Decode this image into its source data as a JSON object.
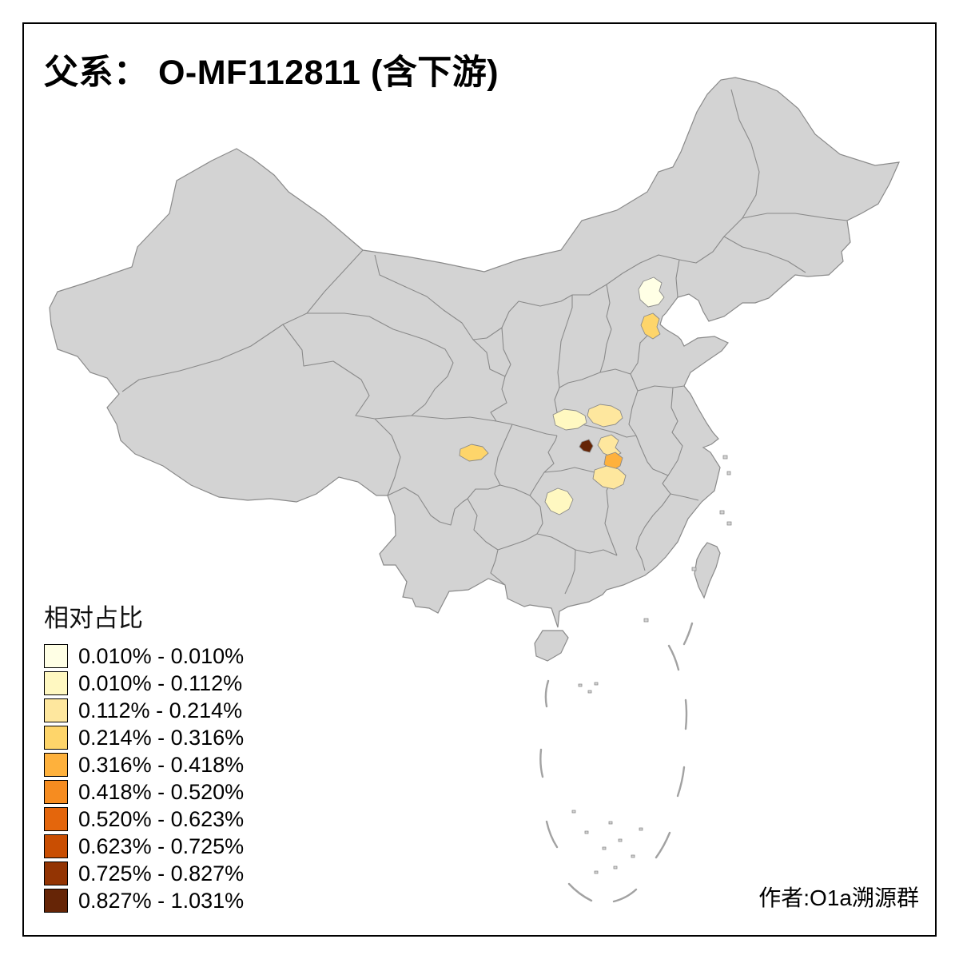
{
  "title": "父系： O-MF112811 (含下游)",
  "legend": {
    "title": "相对占比",
    "items": [
      {
        "label": "0.010% - 0.010%",
        "color": "#FFFFE5"
      },
      {
        "label": "0.010% - 0.112%",
        "color": "#FFF8C1"
      },
      {
        "label": "0.112% - 0.214%",
        "color": "#FEE79E"
      },
      {
        "label": "0.214% - 0.316%",
        "color": "#FED56A"
      },
      {
        "label": "0.316% - 0.418%",
        "color": "#FEB13C"
      },
      {
        "label": "0.418% - 0.520%",
        "color": "#F68C20"
      },
      {
        "label": "0.520% - 0.623%",
        "color": "#E4660C"
      },
      {
        "label": "0.623% - 0.725%",
        "color": "#C94E02"
      },
      {
        "label": "0.725% - 0.827%",
        "color": "#933403"
      },
      {
        "label": "0.827% - 1.031%",
        "color": "#662506"
      }
    ]
  },
  "attribution": "作者:O1a溯源群",
  "map": {
    "base_fill": "#D3D3D3",
    "border_color": "#8A8A8A",
    "highlights": [
      {
        "id": "region-1",
        "color": "#FFFFE5"
      },
      {
        "id": "region-2",
        "color": "#FED56A"
      },
      {
        "id": "region-3",
        "color": "#FFF8C1"
      },
      {
        "id": "region-4",
        "color": "#FEE79E"
      },
      {
        "id": "region-5",
        "color": "#FEE79E"
      },
      {
        "id": "region-6",
        "color": "#FEB13C"
      },
      {
        "id": "region-7",
        "color": "#662506"
      },
      {
        "id": "region-8",
        "color": "#FEE79E"
      },
      {
        "id": "region-9",
        "color": "#FED56A"
      },
      {
        "id": "region-10",
        "color": "#FFF8C1"
      }
    ]
  }
}
